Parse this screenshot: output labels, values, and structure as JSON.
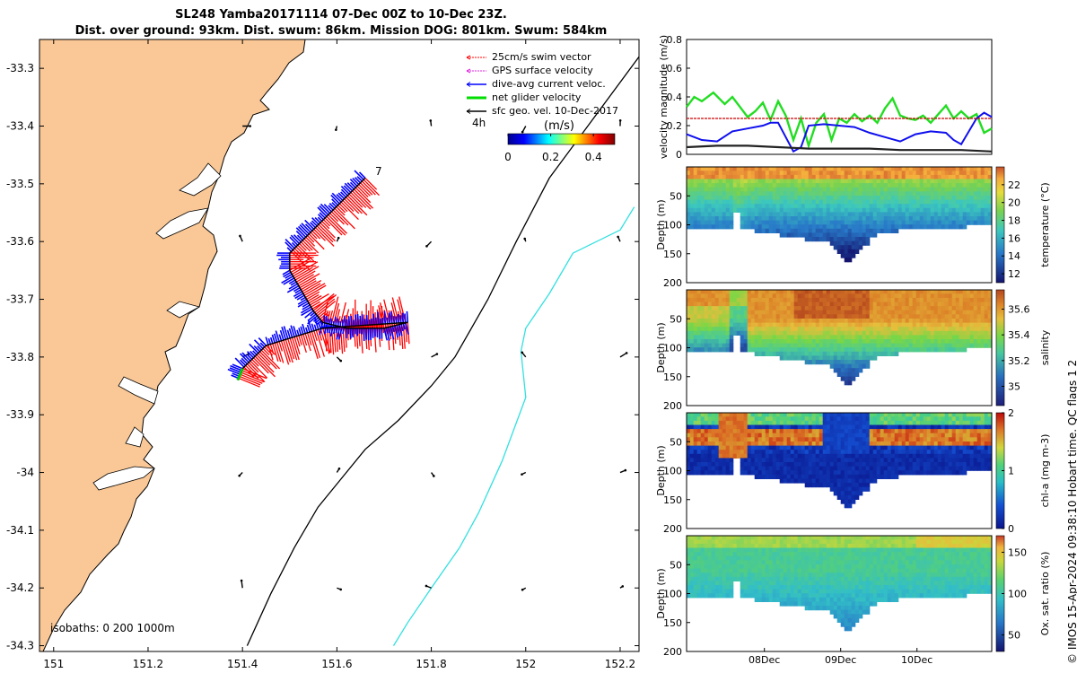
{
  "header": {
    "line1": "SL248 Yamba20171114 07-Dec 00Z to 10-Dec 23Z.",
    "line2": "Dist. over ground: 93km. Dist. swum: 86km. Mission DOG: 801km. Swum: 584km"
  },
  "credit": "© IMOS 15-Apr-2024 09:38:10 Hobart time. QC flags 1  2",
  "colors": {
    "land": "#fac896",
    "isobath_200": "#000000",
    "isobath_1000": "#33e0e0",
    "swim_vector": "#ff0000",
    "gps_velocity": "#e020e0",
    "dive_avg": "#0000ff",
    "net_velocity": "#00dd00",
    "sfc_geo": "#000000",
    "ref_line": "#cc0000"
  },
  "chart_data": [
    {
      "id": "map",
      "type": "scatter",
      "xlim": [
        150.97,
        152.24
      ],
      "ylim": [
        -34.31,
        -33.25
      ],
      "xticks": [
        "151",
        "151.2",
        "151.4",
        "151.6",
        "151.8",
        "152",
        "152.2"
      ],
      "yticks": [
        "-33.3",
        "-33.4",
        "-33.5",
        "-33.6",
        "-33.7",
        "-33.8",
        "-33.9",
        "-34",
        "-34.1",
        "-34.2",
        "-34.3"
      ],
      "legend": {
        "position": "top-right",
        "entries": [
          "25cm/s swim vector",
          "GPS surface velocity",
          "dive-avg current veloc.",
          "net glider velocity",
          "sfc geo. vel. 10-Dec-2017"
        ]
      },
      "speed_colorbar": {
        "title": "(m/s)",
        "ticks": [
          "0",
          "0.2",
          "0.4"
        ],
        "range": [
          0,
          0.5
        ],
        "label_4h": "4h"
      },
      "start_label": "7",
      "isobath_label": "isobaths: 0   200  1000m",
      "track": [
        [
          151.66,
          -33.49
        ],
        [
          151.5,
          -33.62
        ],
        [
          151.5,
          -33.65
        ],
        [
          151.55,
          -33.72
        ],
        [
          151.57,
          -33.74
        ],
        [
          151.62,
          -33.75
        ],
        [
          151.7,
          -33.75
        ],
        [
          151.75,
          -33.74
        ],
        [
          151.57,
          -33.75
        ],
        [
          151.45,
          -33.78
        ],
        [
          151.4,
          -33.82
        ],
        [
          151.39,
          -33.84
        ]
      ],
      "isobath_200": [
        [
          152.24,
          -33.28
        ],
        [
          152.05,
          -33.49
        ],
        [
          151.98,
          -33.6
        ],
        [
          151.92,
          -33.7
        ],
        [
          151.85,
          -33.8
        ],
        [
          151.8,
          -33.85
        ],
        [
          151.73,
          -33.91
        ],
        [
          151.66,
          -33.96
        ],
        [
          151.61,
          -34.01
        ],
        [
          151.56,
          -34.06
        ],
        [
          151.51,
          -34.13
        ],
        [
          151.46,
          -34.21
        ],
        [
          151.41,
          -34.3
        ]
      ],
      "isobath_1000": [
        [
          152.23,
          -33.54
        ],
        [
          152.2,
          -33.58
        ],
        [
          152.1,
          -33.62
        ],
        [
          152.05,
          -33.69
        ],
        [
          152.0,
          -33.75
        ],
        [
          151.99,
          -33.79
        ],
        [
          152.0,
          -33.87
        ],
        [
          151.95,
          -33.98
        ],
        [
          151.9,
          -34.07
        ],
        [
          151.86,
          -34.13
        ],
        [
          151.8,
          -34.2
        ],
        [
          151.75,
          -34.26
        ],
        [
          151.72,
          -34.3
        ]
      ]
    },
    {
      "id": "velocity",
      "type": "line",
      "ylabel": "velocity magnitude (m/s)",
      "ylim": [
        0,
        0.8
      ],
      "yticks": [
        "0",
        "0.2",
        "0.4",
        "0.6",
        "0.8"
      ],
      "xlim": [
        0,
        4
      ],
      "series": [
        {
          "color": "green",
          "x": [
            0,
            0.1,
            0.2,
            0.35,
            0.5,
            0.6,
            0.7,
            0.8,
            0.9,
            1.0,
            1.1,
            1.2,
            1.3,
            1.4,
            1.5,
            1.6,
            1.7,
            1.8,
            1.9,
            2.0,
            2.1,
            2.2,
            2.3,
            2.4,
            2.5,
            2.6,
            2.7,
            2.8,
            2.9,
            3.0,
            3.1,
            3.2,
            3.3,
            3.4,
            3.5,
            3.6,
            3.7,
            3.8,
            3.9,
            4.0
          ],
          "y": [
            0.33,
            0.4,
            0.37,
            0.43,
            0.35,
            0.4,
            0.33,
            0.26,
            0.3,
            0.36,
            0.24,
            0.37,
            0.27,
            0.1,
            0.25,
            0.06,
            0.22,
            0.28,
            0.1,
            0.25,
            0.22,
            0.28,
            0.23,
            0.27,
            0.22,
            0.32,
            0.39,
            0.27,
            0.25,
            0.24,
            0.27,
            0.22,
            0.28,
            0.34,
            0.25,
            0.3,
            0.25,
            0.28,
            0.15,
            0.18
          ]
        },
        {
          "color": "blue",
          "x": [
            0,
            0.2,
            0.4,
            0.6,
            0.8,
            1.0,
            1.1,
            1.2,
            1.3,
            1.4,
            1.5,
            1.6,
            1.8,
            2.0,
            2.2,
            2.4,
            2.6,
            2.8,
            3.0,
            3.2,
            3.4,
            3.5,
            3.6,
            3.7,
            3.8,
            3.9,
            4.0
          ],
          "y": [
            0.14,
            0.1,
            0.09,
            0.16,
            0.18,
            0.2,
            0.22,
            0.22,
            0.12,
            0.02,
            0.05,
            0.2,
            0.21,
            0.2,
            0.19,
            0.15,
            0.12,
            0.09,
            0.14,
            0.16,
            0.15,
            0.1,
            0.07,
            0.16,
            0.25,
            0.29,
            0.26
          ]
        },
        {
          "color": "black",
          "x": [
            0,
            0.4,
            0.8,
            1.2,
            1.6,
            2.0,
            2.4,
            2.8,
            3.2,
            3.6,
            4.0
          ],
          "y": [
            0.05,
            0.06,
            0.06,
            0.05,
            0.04,
            0.04,
            0.04,
            0.03,
            0.03,
            0.03,
            0.02
          ]
        },
        {
          "color": "red",
          "x": [
            0,
            4
          ],
          "y": [
            0.25,
            0.25
          ]
        }
      ]
    },
    {
      "id": "temperature",
      "type": "heatmap",
      "ylabel": "Depth (m)",
      "ylim": [
        0,
        200
      ],
      "yticks": [
        "50",
        "100",
        "150",
        "200"
      ],
      "colorbar": {
        "label": "temperature (°C)",
        "ticks": [
          "12",
          "14",
          "16",
          "18",
          "20",
          "22"
        ],
        "range": [
          11,
          24
        ]
      }
    },
    {
      "id": "salinity",
      "type": "heatmap",
      "ylabel": "Depth (m)",
      "ylim": [
        0,
        200
      ],
      "yticks": [
        "50",
        "100",
        "150",
        "200"
      ],
      "colorbar": {
        "label": "salinity",
        "ticks": [
          "35",
          "35.2",
          "35.4",
          "35.6"
        ],
        "range": [
          34.85,
          35.75
        ]
      }
    },
    {
      "id": "chlorophyll",
      "type": "heatmap",
      "ylabel": "Depth (m)",
      "ylim": [
        0,
        200
      ],
      "yticks": [
        "50",
        "100",
        "150",
        "200"
      ],
      "colorbar": {
        "label": "chl-a (mg m-3)",
        "ticks": [
          "0",
          "1",
          "2"
        ],
        "range": [
          0,
          2
        ]
      }
    },
    {
      "id": "oxygen",
      "type": "heatmap",
      "ylabel": "Depth (m)",
      "ylim": [
        0,
        200
      ],
      "yticks": [
        "50",
        "100",
        "150",
        "200"
      ],
      "xticks": [
        "08Dec",
        "09Dec",
        "10Dec"
      ],
      "colorbar": {
        "label": "Ox. sat. ratio (%)",
        "ticks": [
          "50",
          "100",
          "150"
        ],
        "range": [
          30,
          170
        ]
      }
    }
  ]
}
